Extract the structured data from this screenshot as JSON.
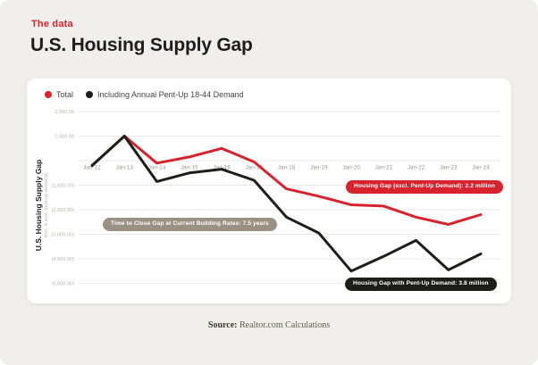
{
  "header": {
    "kicker": "The data",
    "title": "U.S. Housing Supply Gap"
  },
  "legend": [
    {
      "label": "Total",
      "color": "#d8232e"
    },
    {
      "label": "Including Annual Pent-Up 18-44 Demand",
      "color": "#1d1d1b"
    }
  ],
  "chart_data": {
    "type": "line",
    "title": "U.S. Housing Supply Gap",
    "ylabel": "U.S. Housing Supply Gap",
    "ylabel_sub": "(incl. & excl. pent-up demand)",
    "x": [
      "Jan-12",
      "Jan-13",
      "Jan-14",
      "Jan-15",
      "Jan-16",
      "Jan-17",
      "Jan-18",
      "Jan-19",
      "Jan-20",
      "Jan-21",
      "Jan-22",
      "Jan-23",
      "Jan-24"
    ],
    "series": [
      {
        "name": "Total",
        "color": "#d8232e",
        "values": [
          -200,
          1000,
          -100,
          150,
          500,
          -50,
          -1150,
          -1450,
          -1800,
          -1850,
          -2300,
          -2600,
          -2200
        ]
      },
      {
        "name": "Including Annual Pent-Up 18-44 Demand",
        "color": "#1d1d1b",
        "values": [
          -200,
          1000,
          -850,
          -500,
          -350,
          -800,
          -2300,
          -2950,
          -4500,
          -3900,
          -3250,
          -4450,
          -3800
        ]
      }
    ],
    "yticks": [
      {
        "value": 2000,
        "label": "2,000.00"
      },
      {
        "value": 1000,
        "label": "1,000.00"
      },
      {
        "value": 0,
        "label": ""
      },
      {
        "value": -1000,
        "label": "(1,000.00)"
      },
      {
        "value": -2000,
        "label": "(2,000.00)"
      },
      {
        "value": -3000,
        "label": "(3,000.00)"
      },
      {
        "value": -4000,
        "label": "(4,000.00)"
      },
      {
        "value": -5000,
        "label": "(5,000.00)"
      }
    ],
    "ylim": [
      -5000,
      2000
    ],
    "grid": true,
    "legend_position": "top-left"
  },
  "annotations": {
    "total": {
      "text": "Housing Gap (excl. Pent-Up Demand): 2.2 million",
      "bg": "#d8232e"
    },
    "rate": {
      "text": "Time to Close Gap at Current Building Rates: 7.5 years",
      "bg": "#9a9083"
    },
    "pentup": {
      "text": "Housing Gap with Pent-Up Demand: 3.8 million",
      "bg": "#1d1d1b"
    }
  },
  "source": {
    "label": "Source:",
    "text": " Realtor.com Calculations"
  },
  "colors": {
    "accent_red": "#d8232e",
    "background": "#f1efeb",
    "card": "#ffffff",
    "gridline": "#eceae6",
    "axis_text": "#9b9791"
  }
}
